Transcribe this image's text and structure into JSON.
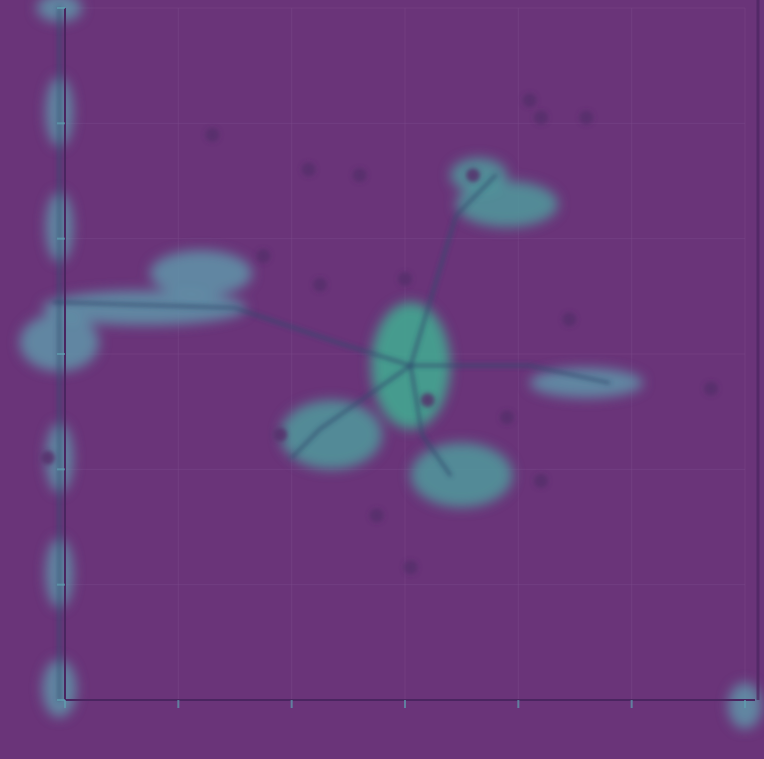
{
  "colors": {
    "background": "#693379",
    "plot_area": "#6a3479",
    "frame": "#4a2560",
    "grid": "#7a4a8a",
    "scatter_point": "#55306b",
    "density_edge": "#5f95a9",
    "density_mid": "#4f9a9c",
    "density_core": "#3fae92",
    "tree_line": "#2e4a6e",
    "tick_label": "#5fa0b0"
  },
  "chart_data": {
    "type": "scatter",
    "title": "",
    "xlabel": "",
    "ylabel": "",
    "xlim": [
      0,
      6
    ],
    "ylim": [
      0,
      6
    ],
    "grid": true,
    "x_ticks": [
      {
        "value": 0,
        "label": ""
      },
      {
        "value": 1,
        "label": ""
      },
      {
        "value": 2,
        "label": ""
      },
      {
        "value": 3,
        "label": ""
      },
      {
        "value": 4,
        "label": ""
      },
      {
        "value": 5,
        "label": ""
      },
      {
        "value": 6,
        "label": ""
      }
    ],
    "y_ticks": [
      {
        "value": 0,
        "label": ""
      },
      {
        "value": 1,
        "label": ""
      },
      {
        "value": 2,
        "label": ""
      },
      {
        "value": 3,
        "label": ""
      },
      {
        "value": 4,
        "label": ""
      },
      {
        "value": 5,
        "label": ""
      },
      {
        "value": 6,
        "label": ""
      }
    ],
    "scatter_points": [
      {
        "x": 1.3,
        "y": 4.9
      },
      {
        "x": 2.15,
        "y": 4.6
      },
      {
        "x": 2.6,
        "y": 4.55
      },
      {
        "x": 4.1,
        "y": 5.2
      },
      {
        "x": 4.2,
        "y": 5.05
      },
      {
        "x": 4.6,
        "y": 5.05
      },
      {
        "x": 1.75,
        "y": 3.85
      },
      {
        "x": 2.25,
        "y": 3.6
      },
      {
        "x": 3.0,
        "y": 3.65
      },
      {
        "x": 3.6,
        "y": 4.55
      },
      {
        "x": 4.45,
        "y": 3.3
      },
      {
        "x": 5.7,
        "y": 2.7
      },
      {
        "x": 3.9,
        "y": 2.45
      },
      {
        "x": 4.2,
        "y": 1.9
      },
      {
        "x": 2.75,
        "y": 1.6
      },
      {
        "x": 3.05,
        "y": 1.15
      },
      {
        "x": 1.9,
        "y": 2.3
      },
      {
        "x": -0.15,
        "y": 2.1
      },
      {
        "x": 3.2,
        "y": 2.6
      }
    ],
    "branches": [
      {
        "name": "",
        "points": [
          {
            "x": 3.05,
            "y": 2.9
          },
          {
            "x": 3.45,
            "y": 4.2
          },
          {
            "x": 3.8,
            "y": 4.55
          }
        ]
      },
      {
        "name": "",
        "points": [
          {
            "x": 3.05,
            "y": 2.9
          },
          {
            "x": 2.4,
            "y": 3.1
          },
          {
            "x": 1.5,
            "y": 3.4
          },
          {
            "x": -0.1,
            "y": 3.45
          }
        ]
      },
      {
        "name": "",
        "points": [
          {
            "x": 3.05,
            "y": 2.9
          },
          {
            "x": 4.1,
            "y": 2.9
          },
          {
            "x": 4.8,
            "y": 2.75
          }
        ]
      },
      {
        "name": "",
        "points": [
          {
            "x": 3.05,
            "y": 2.9
          },
          {
            "x": 2.25,
            "y": 2.35
          },
          {
            "x": 2.0,
            "y": 2.1
          }
        ]
      },
      {
        "name": "",
        "points": [
          {
            "x": 3.05,
            "y": 2.9
          },
          {
            "x": 3.15,
            "y": 2.3
          },
          {
            "x": 3.4,
            "y": 1.95
          }
        ]
      },
      {
        "name": "",
        "points": [
          {
            "x": -0.05,
            "y": 6.0
          },
          {
            "x": -0.05,
            "y": 0.0
          }
        ]
      }
    ],
    "density_regions": [
      {
        "x": 3.05,
        "y": 2.9,
        "rx": 0.35,
        "ry": 0.55,
        "level": "core"
      },
      {
        "x": 3.9,
        "y": 4.3,
        "rx": 0.45,
        "ry": 0.2,
        "level": "mid"
      },
      {
        "x": 3.65,
        "y": 4.55,
        "rx": 0.25,
        "ry": 0.15,
        "level": "mid"
      },
      {
        "x": 1.2,
        "y": 3.7,
        "rx": 0.45,
        "ry": 0.2,
        "level": "edge"
      },
      {
        "x": 0.7,
        "y": 3.4,
        "rx": 0.9,
        "ry": 0.15,
        "level": "edge"
      },
      {
        "x": -0.05,
        "y": 3.1,
        "rx": 0.35,
        "ry": 0.25,
        "level": "edge"
      },
      {
        "x": 4.6,
        "y": 2.75,
        "rx": 0.5,
        "ry": 0.13,
        "level": "edge"
      },
      {
        "x": 2.35,
        "y": 2.3,
        "rx": 0.45,
        "ry": 0.3,
        "level": "mid"
      },
      {
        "x": 3.5,
        "y": 1.95,
        "rx": 0.45,
        "ry": 0.28,
        "level": "mid"
      },
      {
        "x": -0.05,
        "y": 5.1,
        "rx": 0.12,
        "ry": 0.3,
        "level": "edge"
      },
      {
        "x": -0.05,
        "y": 4.1,
        "rx": 0.12,
        "ry": 0.3,
        "level": "edge"
      },
      {
        "x": -0.05,
        "y": 2.1,
        "rx": 0.12,
        "ry": 0.3,
        "level": "edge"
      },
      {
        "x": -0.05,
        "y": 1.1,
        "rx": 0.12,
        "ry": 0.3,
        "level": "edge"
      },
      {
        "x": -0.05,
        "y": 0.1,
        "rx": 0.15,
        "ry": 0.25,
        "level": "edge"
      },
      {
        "x": -0.05,
        "y": 6.0,
        "rx": 0.2,
        "ry": 0.12,
        "level": "edge"
      },
      {
        "x": 6.0,
        "y": -0.05,
        "rx": 0.15,
        "ry": 0.2,
        "level": "edge"
      }
    ]
  }
}
